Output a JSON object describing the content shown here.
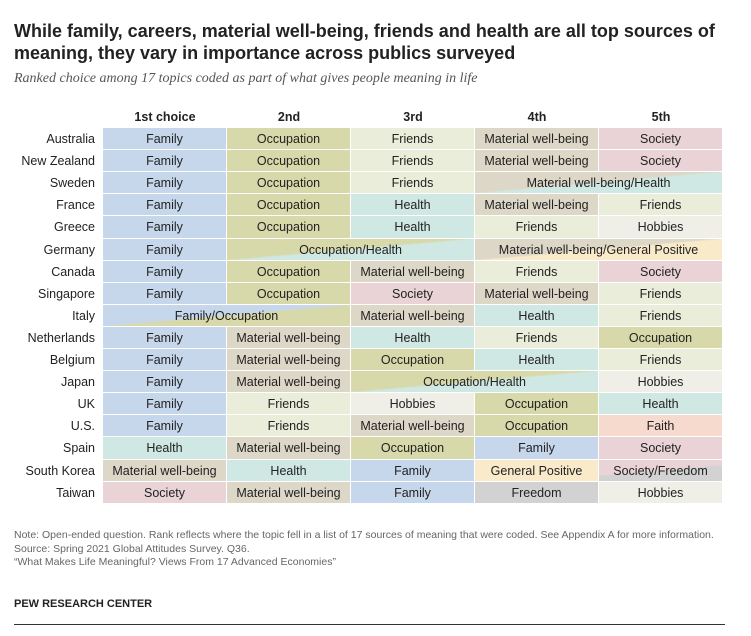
{
  "header": {
    "title": "While family, careers, material well-being, friends and health are all top sources of meaning, they vary in importance across publics surveyed",
    "subtitle": "Ranked choice among 17 topics coded as part of what gives people meaning in life"
  },
  "table": {
    "columns": [
      "1st choice",
      "2nd",
      "3rd",
      "4th",
      "5th"
    ],
    "topic_colors": {
      "Family": "#c6d7ec",
      "Occupation": "#d7d9aa",
      "Friends": "#e9edd9",
      "Material well-being": "#ddd7c8",
      "Society": "#e9d3d7",
      "Health": "#d0e8e3",
      "Hobbies": "#efefe8",
      "General Positive": "#f9eaca",
      "Faith": "#f6dacd",
      "Freedom": "#d2d2d2"
    },
    "rows": [
      {
        "country": "Australia",
        "cells": [
          "Family",
          "Occupation",
          "Friends",
          "Material well-being",
          "Society"
        ]
      },
      {
        "country": "New Zealand",
        "cells": [
          "Family",
          "Occupation",
          "Friends",
          "Material well-being",
          "Society"
        ]
      },
      {
        "country": "Sweden",
        "cells": [
          "Family",
          "Occupation",
          "Friends",
          {
            "label": "Material well-being/Health",
            "span": 2
          }
        ]
      },
      {
        "country": "France",
        "cells": [
          "Family",
          "Occupation",
          "Health",
          "Material well-being",
          "Friends"
        ]
      },
      {
        "country": "Greece",
        "cells": [
          "Family",
          "Occupation",
          "Health",
          "Friends",
          "Hobbies"
        ]
      },
      {
        "country": "Germany",
        "cells": [
          "Family",
          {
            "label": "Occupation/Health",
            "span": 2
          },
          {
            "label": "Material well-being/General Positive",
            "span": 2
          }
        ]
      },
      {
        "country": "Canada",
        "cells": [
          "Family",
          "Occupation",
          "Material well-being",
          "Friends",
          "Society"
        ]
      },
      {
        "country": "Singapore",
        "cells": [
          "Family",
          "Occupation",
          "Society",
          "Material well-being",
          "Friends"
        ]
      },
      {
        "country": "Italy",
        "cells": [
          {
            "label": "Family/Occupation",
            "span": 2
          },
          "Material well-being",
          "Health",
          "Friends"
        ]
      },
      {
        "country": "Netherlands",
        "cells": [
          "Family",
          "Material well-being",
          "Health",
          "Friends",
          "Occupation"
        ]
      },
      {
        "country": "Belgium",
        "cells": [
          "Family",
          "Material well-being",
          "Occupation",
          "Health",
          "Friends"
        ]
      },
      {
        "country": "Japan",
        "cells": [
          "Family",
          "Material well-being",
          {
            "label": "Occupation/Health",
            "span": 2
          },
          "Hobbies"
        ]
      },
      {
        "country": "UK",
        "cells": [
          "Family",
          "Friends",
          "Hobbies",
          "Occupation",
          "Health"
        ]
      },
      {
        "country": "U.S.",
        "cells": [
          "Family",
          "Friends",
          "Material well-being",
          "Occupation",
          "Faith"
        ]
      },
      {
        "country": "Spain",
        "cells": [
          "Health",
          "Material well-being",
          "Occupation",
          "Family",
          "Society"
        ]
      },
      {
        "country": "South Korea",
        "cells": [
          "Material well-being",
          "Health",
          "Family",
          "General Positive",
          "Society/Freedom"
        ]
      },
      {
        "country": "Taiwan",
        "cells": [
          "Society",
          "Material well-being",
          "Family",
          "Freedom",
          "Hobbies"
        ]
      }
    ]
  },
  "footer": {
    "notes": [
      "Note: Open-ended question. Rank reflects where the topic fell in a list of 17 sources of meaning that were coded. See Appendix A for more information.",
      "Source: Spring 2021 Global Attitudes Survey. Q36.",
      "“What Makes Life Meaningful? Views From 17 Advanced Economies”"
    ],
    "brand": "PEW RESEARCH CENTER"
  }
}
